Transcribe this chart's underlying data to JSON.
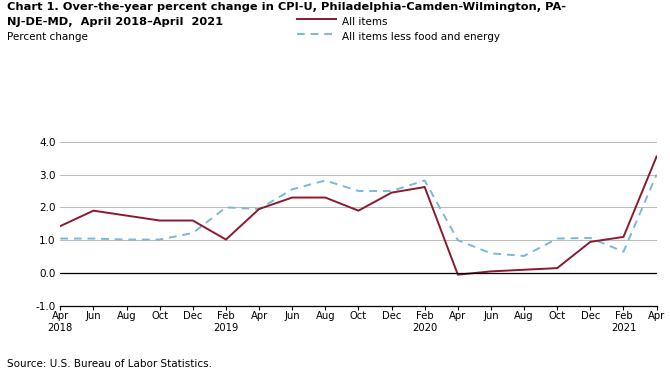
{
  "title_line1": "Chart 1. Over-the-year percent change in CPI-U, Philadelphia-Camden-Wilmington, PA-",
  "title_line2": "NJ-DE-MD,  April 2018–April  2021",
  "ylabel": "Percent change",
  "source": "Source: U.S. Bureau of Labor Statistics.",
  "legend_all_items": "All items",
  "legend_core": "All items less food and energy",
  "all_items_color": "#8B1A2D",
  "core_color": "#7ab8d9",
  "xlim_min": 0,
  "xlim_max": 36,
  "ylim_min": -1.0,
  "ylim_max": 4.0,
  "yticks": [
    -1.0,
    0.0,
    1.0,
    2.0,
    3.0,
    4.0
  ],
  "xtick_labels": [
    "Apr\n2018",
    "Jun",
    "Aug",
    "Oct",
    "Dec",
    "Feb\n2019",
    "Apr",
    "Jun",
    "Aug",
    "Oct",
    "Dec",
    "Feb\n2020",
    "Apr",
    "Jun",
    "Aug",
    "Oct",
    "Dec",
    "Feb\n2021",
    "Apr"
  ],
  "xtick_positions": [
    0,
    2,
    4,
    6,
    8,
    10,
    12,
    14,
    16,
    18,
    20,
    22,
    24,
    26,
    28,
    30,
    32,
    34,
    36
  ],
  "all_items_x": [
    0,
    2,
    4,
    6,
    8,
    10,
    12,
    14,
    16,
    18,
    20,
    22,
    24,
    26,
    28,
    30,
    32,
    34,
    36
  ],
  "all_items_y": [
    1.43,
    1.9,
    1.75,
    1.6,
    1.6,
    1.02,
    1.95,
    2.3,
    2.3,
    1.9,
    2.45,
    2.62,
    -0.05,
    0.05,
    0.1,
    0.15,
    0.95,
    1.1,
    3.55
  ],
  "core_x": [
    0,
    2,
    4,
    6,
    8,
    10,
    12,
    14,
    16,
    18,
    20,
    22,
    24,
    26,
    28,
    30,
    32,
    34,
    36
  ],
  "core_y": [
    1.05,
    1.05,
    1.02,
    1.02,
    1.22,
    2.0,
    1.95,
    2.55,
    2.82,
    2.5,
    2.5,
    2.82,
    1.0,
    0.6,
    0.52,
    1.05,
    1.07,
    0.65,
    3.0
  ],
  "fig_width": 6.7,
  "fig_height": 3.73,
  "dpi": 100
}
